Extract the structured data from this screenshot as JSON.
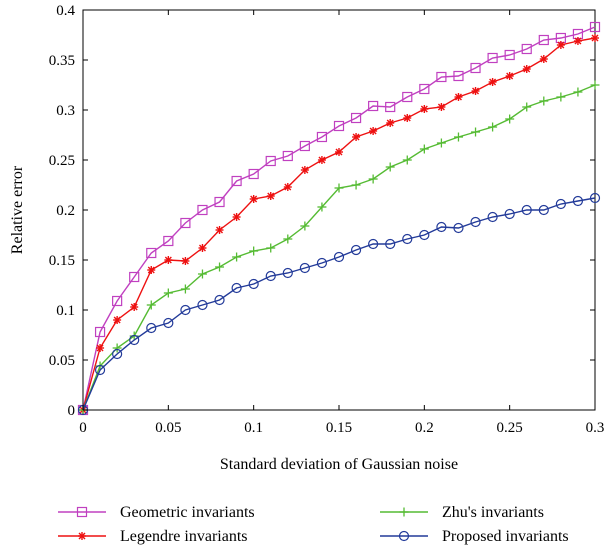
{
  "chart_data": {
    "type": "line",
    "xlabel": "Standard deviation of Gaussian noise",
    "ylabel": "Relative error",
    "xlim": [
      0,
      0.3
    ],
    "ylim": [
      0,
      0.4
    ],
    "x_ticks": [
      0,
      0.05,
      0.1,
      0.15,
      0.2,
      0.25,
      0.3
    ],
    "x_tick_labels": [
      "0",
      "0.05",
      "0.1",
      "0.15",
      "0.2",
      "0.25",
      "0.3"
    ],
    "y_ticks": [
      0,
      0.05,
      0.1,
      0.15,
      0.2,
      0.25,
      0.3,
      0.35,
      0.4
    ],
    "y_tick_labels": [
      "0",
      "0.05",
      "0.1",
      "0.15",
      "0.2",
      "0.25",
      "0.3",
      "0.35",
      "0.4"
    ],
    "grid": false,
    "legend_position": "bottom",
    "x": [
      0,
      0.01,
      0.02,
      0.03,
      0.04,
      0.05,
      0.06,
      0.07,
      0.08,
      0.09,
      0.1,
      0.11,
      0.12,
      0.13,
      0.14,
      0.15,
      0.16,
      0.17,
      0.18,
      0.19,
      0.2,
      0.21,
      0.22,
      0.23,
      0.24,
      0.25,
      0.26,
      0.27,
      0.28,
      0.29,
      0.3
    ],
    "series": [
      {
        "name": "Geometric invariants",
        "color": "#c040c0",
        "marker": "square",
        "values": [
          0,
          0.078,
          0.109,
          0.133,
          0.157,
          0.169,
          0.187,
          0.2,
          0.208,
          0.229,
          0.236,
          0.249,
          0.254,
          0.264,
          0.273,
          0.284,
          0.292,
          0.304,
          0.303,
          0.313,
          0.321,
          0.333,
          0.334,
          0.342,
          0.352,
          0.355,
          0.361,
          0.37,
          0.372,
          0.376,
          0.383
        ]
      },
      {
        "name": "Legendre invariants",
        "color": "#ee1111",
        "marker": "star",
        "values": [
          0,
          0.062,
          0.09,
          0.103,
          0.14,
          0.15,
          0.149,
          0.162,
          0.18,
          0.193,
          0.211,
          0.214,
          0.223,
          0.24,
          0.25,
          0.258,
          0.273,
          0.279,
          0.287,
          0.292,
          0.301,
          0.303,
          0.313,
          0.319,
          0.328,
          0.334,
          0.341,
          0.351,
          0.365,
          0.369,
          0.372
        ]
      },
      {
        "name": "Zhu's invariants",
        "color": "#55bb33",
        "marker": "plus",
        "values": [
          0,
          0.044,
          0.062,
          0.074,
          0.105,
          0.117,
          0.121,
          0.136,
          0.143,
          0.153,
          0.159,
          0.162,
          0.171,
          0.184,
          0.203,
          0.222,
          0.225,
          0.231,
          0.243,
          0.25,
          0.261,
          0.267,
          0.273,
          0.278,
          0.283,
          0.291,
          0.303,
          0.309,
          0.313,
          0.318,
          0.325
        ]
      },
      {
        "name": "Proposed invariants",
        "color": "#223a99",
        "marker": "circle",
        "values": [
          0,
          0.04,
          0.056,
          0.07,
          0.082,
          0.087,
          0.1,
          0.105,
          0.11,
          0.122,
          0.126,
          0.134,
          0.137,
          0.142,
          0.147,
          0.153,
          0.16,
          0.166,
          0.166,
          0.171,
          0.175,
          0.183,
          0.182,
          0.188,
          0.193,
          0.196,
          0.2,
          0.2,
          0.206,
          0.209,
          0.212
        ]
      }
    ]
  }
}
